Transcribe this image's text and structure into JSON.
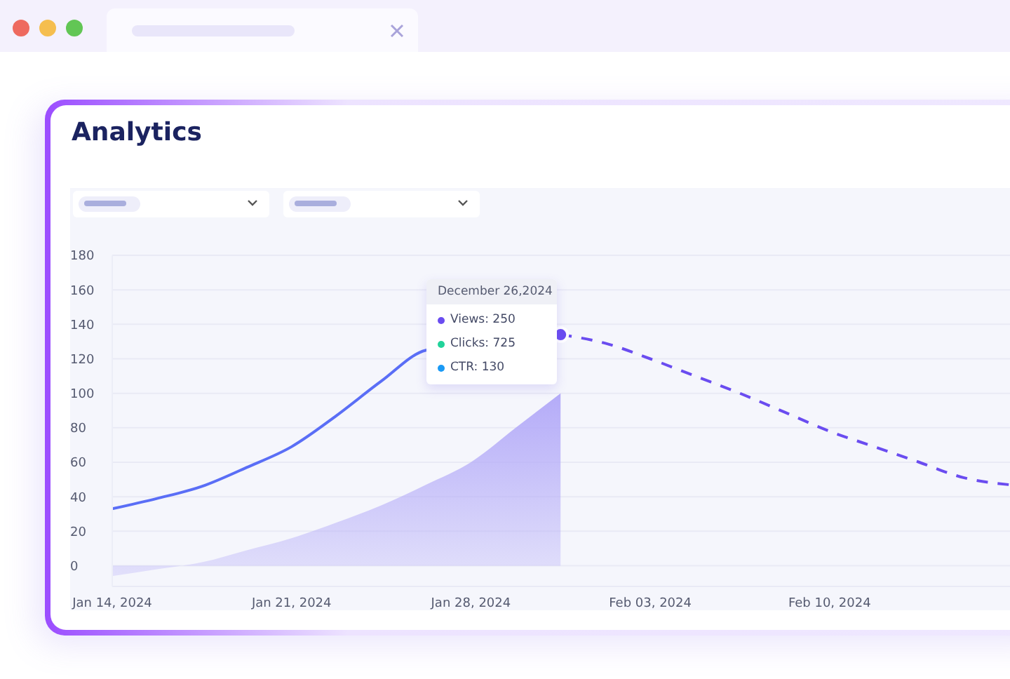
{
  "chart_data": {
    "type": "line",
    "title": "Analytics",
    "categories": [
      "Jan 14, 2024",
      null,
      null,
      null,
      "Jan 21, 2024",
      null,
      null,
      null,
      "Jan 28, 2024",
      null,
      null,
      null,
      "Feb 03, 2024",
      null,
      null,
      null,
      "Feb 10, 2024",
      null,
      null,
      null,
      null
    ],
    "series": [
      {
        "type": "area",
        "color": "#b4abf8",
        "values": [
          -6,
          -2,
          2,
          9,
          16,
          25,
          35,
          47,
          60,
          80,
          100,
          null,
          null,
          null,
          null,
          null,
          null,
          null,
          null,
          null,
          null
        ]
      },
      {
        "color": "#5a6ef6",
        "line_style": "solid",
        "values": [
          33,
          39,
          46,
          57,
          69,
          87,
          107,
          125,
          null,
          null,
          134,
          null,
          null,
          null,
          null,
          null,
          null,
          null,
          null,
          null,
          null
        ]
      },
      {
        "color": "#6a4cf0",
        "line_style": "dashed",
        "values": [
          null,
          null,
          null,
          null,
          null,
          null,
          null,
          null,
          null,
          null,
          134,
          129,
          120,
          110,
          100,
          89,
          78,
          69,
          60,
          51,
          47
        ]
      },
      {
        "type": "scatter",
        "color": "#6a4cf0",
        "values": [
          null,
          null,
          null,
          null,
          null,
          null,
          null,
          null,
          null,
          null,
          134,
          null,
          null,
          null,
          null,
          null,
          null,
          null,
          null,
          null,
          null
        ]
      }
    ],
    "ylim": [
      -12,
      180
    ],
    "yticks": [
      0,
      20,
      40,
      60,
      80,
      100,
      120,
      140,
      160,
      180
    ],
    "grid": "y",
    "annotations": [
      "December 26,2024",
      "Views: 250",
      "Clicks: 725",
      "CTR: 130"
    ]
  }
}
